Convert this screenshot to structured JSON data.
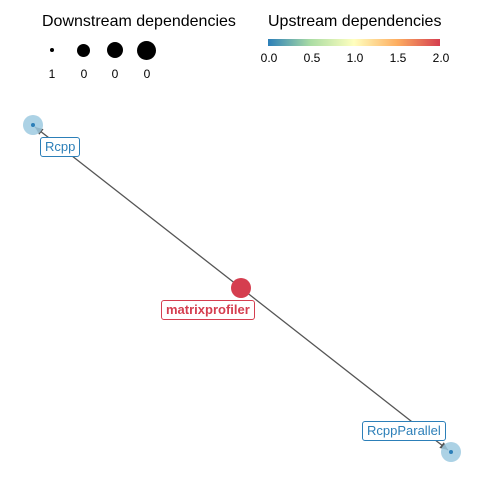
{
  "legend": {
    "downstream": {
      "title": "Downstream dependencies",
      "sizes": [
        "1",
        "0",
        "0",
        "0"
      ]
    },
    "upstream": {
      "title": "Upstream dependencies",
      "ticks": [
        "0.0",
        "0.5",
        "1.0",
        "1.5",
        "2.0"
      ],
      "colors": [
        "#2c7fb8",
        "#abdda4",
        "#ffffbf",
        "#fdae61",
        "#d53e4f"
      ]
    }
  },
  "graph": {
    "nodes": [
      {
        "id": "Rcpp",
        "label": "Rcpp",
        "color": "#9ecae1"
      },
      {
        "id": "matrixprofiler",
        "label": "matrixprofiler",
        "color": "#d53e4f"
      },
      {
        "id": "RcppParallel",
        "label": "RcppParallel",
        "color": "#9ecae1"
      }
    ],
    "edges": [
      {
        "from": "matrixprofiler",
        "to": "Rcpp"
      },
      {
        "from": "matrixprofiler",
        "to": "RcppParallel"
      }
    ]
  }
}
